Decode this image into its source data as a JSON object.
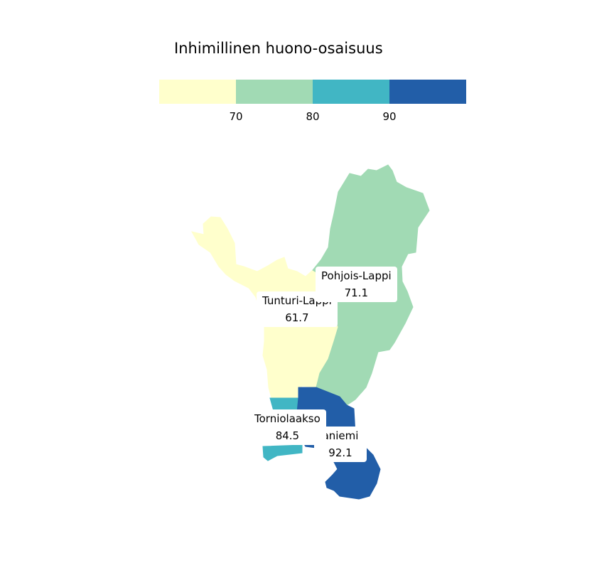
{
  "legend": {
    "title": "Inhimillinen huono-osaisuus",
    "colors": [
      "#ffffcc",
      "#a1dab4",
      "#41b6c4",
      "#225ea8"
    ],
    "ticks": [
      "70",
      "80",
      "90"
    ]
  },
  "regions": [
    {
      "name": "Tunturi-Lappi",
      "value": "61.7",
      "color": "#ffffcc"
    },
    {
      "name": "Pohjois-Lappi",
      "value": "71.1",
      "color": "#a1dab4"
    },
    {
      "name": "Torniolaakso",
      "value": "84.5",
      "color": "#41b6c4"
    },
    {
      "name": "aniemi",
      "value": "92.1",
      "color": "#225ea8"
    }
  ]
}
